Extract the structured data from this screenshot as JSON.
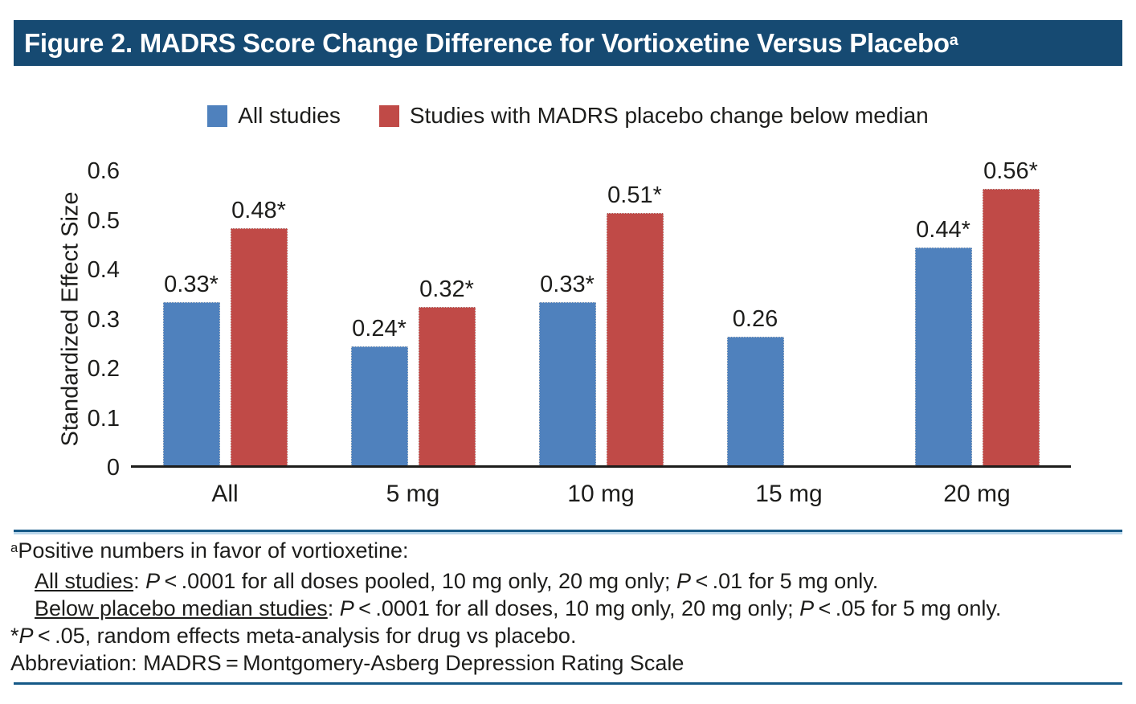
{
  "colors": {
    "header_bg": "#164A72",
    "rule_blue": "#155987",
    "rule_light": "#B9D6EA",
    "series_blue": "#4F81BD",
    "series_red": "#C04A47",
    "axis_black": "#1D1D1B",
    "text": "#1D1D1B",
    "title_text": "#FFFFFF"
  },
  "title": {
    "segments": [
      {
        "t": "Figure 2. MADRS Score Change Difference for Vortioxetine Versus Placebo"
      },
      {
        "t": "a",
        "s": "sup"
      }
    ]
  },
  "chart_data": {
    "type": "bar",
    "categories": [
      "All",
      "5 mg",
      "10 mg",
      "15 mg",
      "20 mg"
    ],
    "series": [
      {
        "name": "All studies",
        "color": "#4F81BD",
        "values": [
          0.33,
          0.24,
          0.33,
          0.26,
          0.44
        ],
        "bar_labels": [
          "0.33*",
          "0.24*",
          "0.33*",
          "0.26",
          "0.44*"
        ]
      },
      {
        "name": "Studies with MADRS placebo change below median",
        "color": "#C04A47",
        "values": [
          0.48,
          0.32,
          0.51,
          null,
          0.56
        ],
        "bar_labels": [
          "0.48*",
          "0.32*",
          "0.51*",
          null,
          "0.56*"
        ]
      }
    ],
    "ylabel": "Standardized Effect Size",
    "xlabel": "",
    "ylim": [
      0,
      0.6
    ],
    "yticks": [
      0,
      0.1,
      0.2,
      0.3,
      0.4,
      0.5,
      0.6
    ],
    "ytick_labels": [
      "0",
      "0.1",
      "0.2",
      "0.3",
      "0.4",
      "0.5",
      "0.6"
    ],
    "grid": false,
    "legend_position": "top"
  },
  "footnotes": {
    "lines": [
      {
        "indent": false,
        "segments": [
          {
            "t": "a",
            "s": "sup"
          },
          {
            "t": "Positive numbers in favor of vortioxetine:"
          }
        ]
      },
      {
        "indent": true,
        "segments": [
          {
            "t": "All studies",
            "s": "u"
          },
          {
            "t": ": "
          },
          {
            "t": "P",
            "s": "i"
          },
          {
            "t": " < .0001 for all doses pooled, 10 mg only, 20 mg only; "
          },
          {
            "t": "P",
            "s": "i"
          },
          {
            "t": " < .01 for 5 mg only."
          }
        ]
      },
      {
        "indent": true,
        "segments": [
          {
            "t": "Below placebo median studies",
            "s": "u"
          },
          {
            "t": ": "
          },
          {
            "t": "P",
            "s": "i"
          },
          {
            "t": " < .0001 for all doses, 10 mg only, 20 mg only; "
          },
          {
            "t": "P",
            "s": "i"
          },
          {
            "t": " < .05 for 5 mg only."
          }
        ]
      },
      {
        "indent": false,
        "segments": [
          {
            "t": "*"
          },
          {
            "t": "P",
            "s": "i"
          },
          {
            "t": " < .05, random effects meta-analysis for drug vs placebo."
          }
        ]
      },
      {
        "indent": false,
        "segments": [
          {
            "t": "Abbreviation: MADRS = Montgomery-Asberg Depression Rating Scale"
          }
        ]
      }
    ]
  }
}
